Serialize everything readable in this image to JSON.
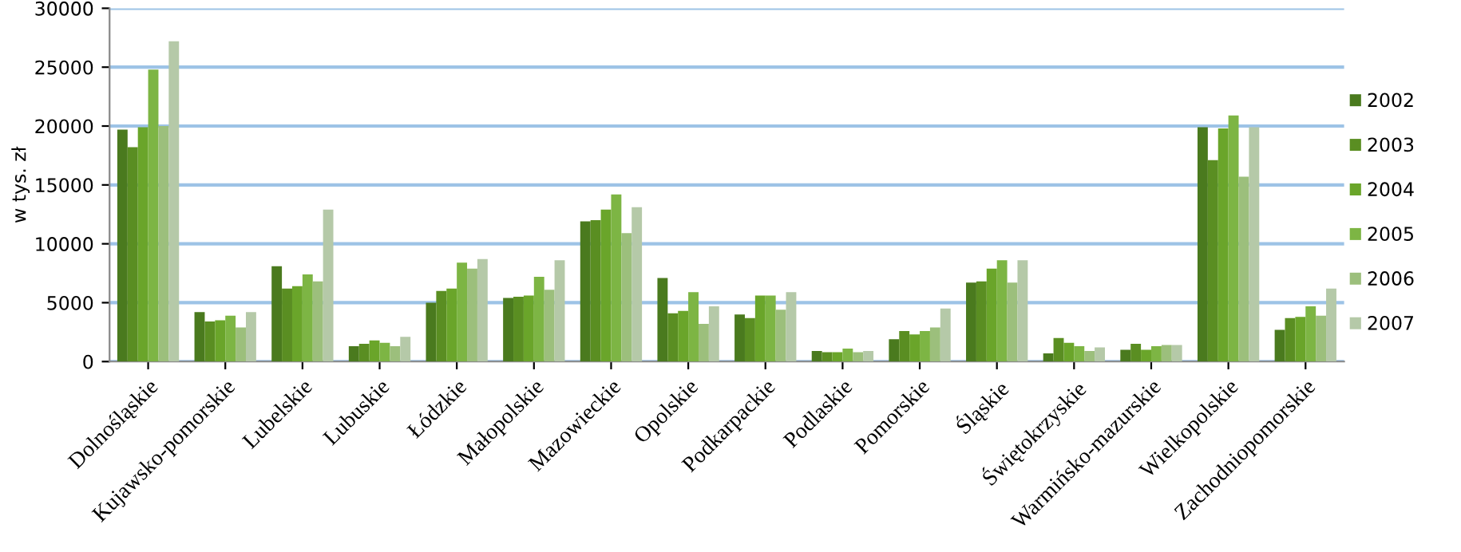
{
  "chart_data": {
    "type": "bar",
    "ylabel": "w tys. zł",
    "categories": [
      "Dolnośląskie",
      "Kujawsko-pomorskie",
      "Lubelskie",
      "Lubuskie",
      "Łódzkie",
      "Małopolskie",
      "Mazowieckie",
      "Opolskie",
      "Podkarpackie",
      "Podlaskie",
      "Pomorskie",
      "Śląskie",
      "Świętokrzyskie",
      "Warmińsko-mazurskie",
      "Wielkopolskie",
      "Zachodniopomorskie"
    ],
    "series": [
      {
        "name": "2002",
        "color": "#4a7a1e",
        "values": [
          19700,
          4200,
          8100,
          1300,
          5000,
          5400,
          11900,
          7100,
          4000,
          900,
          1900,
          6700,
          700,
          1000,
          19900,
          2700
        ]
      },
      {
        "name": "2003",
        "color": "#5a8e22",
        "values": [
          18200,
          3400,
          6200,
          1500,
          6000,
          5500,
          12000,
          4100,
          3700,
          800,
          2600,
          6800,
          2000,
          1500,
          17100,
          3700
        ]
      },
      {
        "name": "2004",
        "color": "#6aa52a",
        "values": [
          19900,
          3500,
          6400,
          1800,
          6200,
          5600,
          12900,
          4300,
          5600,
          800,
          2300,
          7900,
          1600,
          1000,
          19800,
          3800
        ]
      },
      {
        "name": "2005",
        "color": "#7db544",
        "values": [
          24800,
          3900,
          7400,
          1600,
          8400,
          7200,
          14200,
          5900,
          5600,
          1100,
          2600,
          8600,
          1300,
          1300,
          20900,
          4700
        ]
      },
      {
        "name": "2006",
        "color": "#9cbf7c",
        "values": [
          20000,
          2900,
          6800,
          1300,
          7900,
          6100,
          10900,
          3200,
          4400,
          800,
          2900,
          6700,
          900,
          1400,
          15700,
          3900
        ]
      },
      {
        "name": "2007",
        "color": "#b5c9a8",
        "values": [
          27200,
          4200,
          12900,
          2100,
          8700,
          8600,
          13100,
          4700,
          5900,
          900,
          4500,
          8600,
          1200,
          1400,
          19900,
          6200
        ]
      }
    ],
    "ylim": [
      0,
      30000
    ],
    "yticks": [
      0,
      5000,
      10000,
      15000,
      20000,
      25000,
      30000
    ],
    "grid": "y",
    "legend": "right"
  }
}
